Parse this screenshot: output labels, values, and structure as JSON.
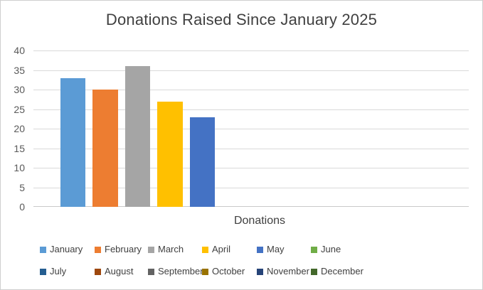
{
  "chart_data": {
    "type": "bar",
    "title": "Donations Raised Since January 2025",
    "xlabel": "Donations",
    "ylabel": "",
    "categories": [
      "Donations"
    ],
    "series": [
      {
        "name": "January",
        "values": [
          33
        ],
        "color": "#5B9BD5"
      },
      {
        "name": "February",
        "values": [
          30
        ],
        "color": "#ED7D31"
      },
      {
        "name": "March",
        "values": [
          36
        ],
        "color": "#A5A5A5"
      },
      {
        "name": "April",
        "values": [
          27
        ],
        "color": "#FFC000"
      },
      {
        "name": "May",
        "values": [
          23
        ],
        "color": "#4472C4"
      },
      {
        "name": "June",
        "values": [
          null
        ],
        "color": "#70AD47"
      },
      {
        "name": "July",
        "values": [
          null
        ],
        "color": "#255E91"
      },
      {
        "name": "August",
        "values": [
          null
        ],
        "color": "#9E480E"
      },
      {
        "name": "September",
        "values": [
          null
        ],
        "color": "#636363"
      },
      {
        "name": "October",
        "values": [
          null
        ],
        "color": "#997300"
      },
      {
        "name": "November",
        "values": [
          null
        ],
        "color": "#264478"
      },
      {
        "name": "December",
        "values": [
          null
        ],
        "color": "#43682B"
      }
    ],
    "ylim": [
      0,
      40
    ],
    "yticks": [
      0,
      5,
      10,
      15,
      20,
      25,
      30,
      35,
      40
    ],
    "grid": true,
    "legend_position": "bottom"
  },
  "styles": {
    "background": "#FFFFFF",
    "frame_border_color": "#CFCFCF",
    "title_color": "#404040",
    "tick_label_color": "#595959",
    "legend_text_color": "#404040",
    "gridline_color": "#D9D9D9",
    "axis_line_color": "#C9C9C9"
  }
}
